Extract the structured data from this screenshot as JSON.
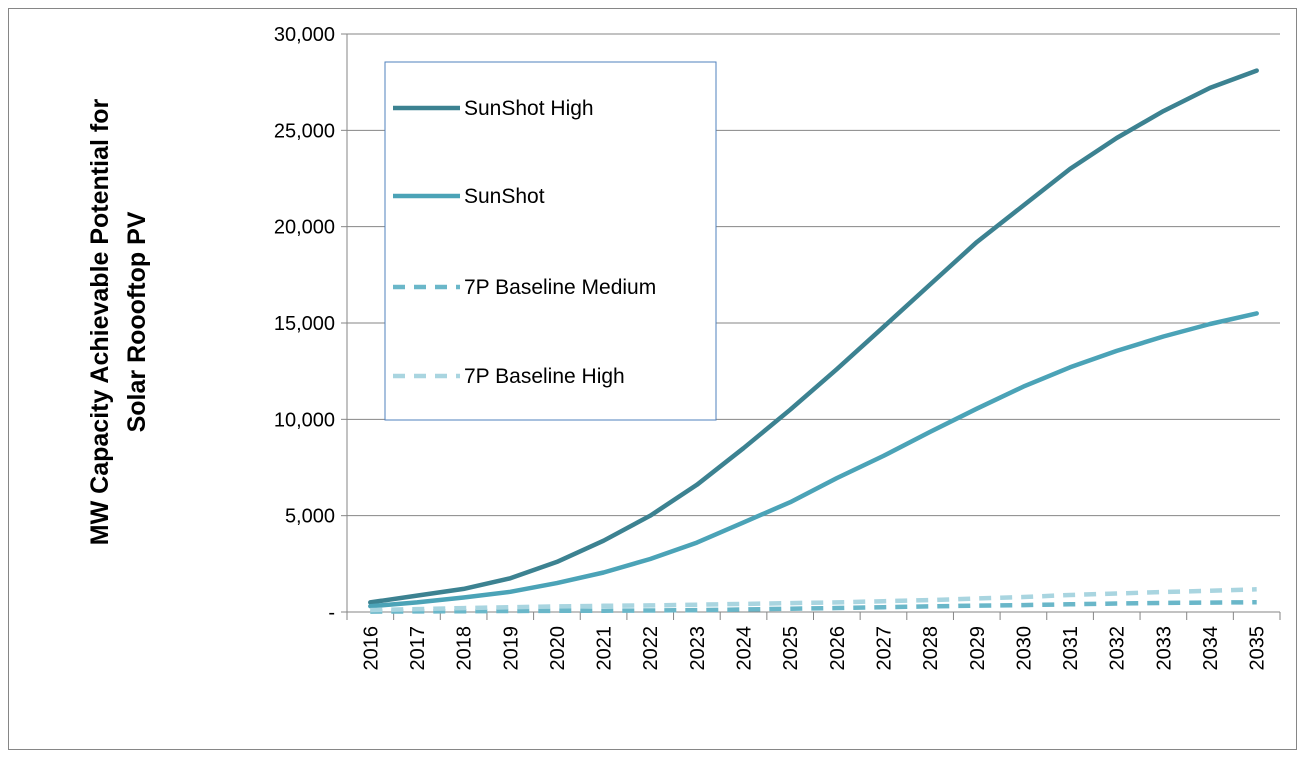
{
  "chart_data": {
    "type": "line",
    "title": "",
    "ylabel_line1": "MW Capacity Achievable Potential for",
    "ylabel_line2": "Solar Roooftop PV",
    "xlabel": "",
    "ylim": [
      0,
      30000
    ],
    "y_ticks": [
      0,
      5000,
      10000,
      15000,
      20000,
      25000,
      30000
    ],
    "y_tick_labels": [
      "-",
      "5,000",
      "10,000",
      "15,000",
      "20,000",
      "25,000",
      "30,000"
    ],
    "categories": [
      "2016",
      "2017",
      "2018",
      "2019",
      "2020",
      "2021",
      "2022",
      "2023",
      "2024",
      "2025",
      "2026",
      "2027",
      "2028",
      "2029",
      "2030",
      "2031",
      "2032",
      "2033",
      "2034",
      "2035"
    ],
    "grid": "horizontal",
    "legend_position": "top-left",
    "series": [
      {
        "name": "SunShot High",
        "color": "#3c8291",
        "dash": "solid",
        "values": [
          500,
          850,
          1200,
          1750,
          2600,
          3700,
          5000,
          6600,
          8500,
          10500,
          12600,
          14800,
          17000,
          19200,
          21100,
          23000,
          24600,
          26000,
          27200,
          28100
        ]
      },
      {
        "name": "SunShot",
        "color": "#4ba3b7",
        "dash": "solid",
        "values": [
          300,
          500,
          750,
          1050,
          1500,
          2050,
          2750,
          3600,
          4650,
          5700,
          6950,
          8100,
          9350,
          10550,
          11700,
          12700,
          13550,
          14300,
          14950,
          15500
        ]
      },
      {
        "name": "7P Baseline Medium",
        "color": "#6ab7c9",
        "dash": "dashed",
        "values": [
          20,
          30,
          40,
          50,
          60,
          70,
          80,
          100,
          130,
          170,
          210,
          250,
          290,
          330,
          360,
          400,
          440,
          470,
          490,
          510
        ]
      },
      {
        "name": "7P Baseline High",
        "color": "#a9d5e0",
        "dash": "dashed",
        "values": [
          100,
          150,
          200,
          250,
          290,
          320,
          340,
          380,
          420,
          460,
          500,
          560,
          620,
          700,
          780,
          880,
          960,
          1040,
          1100,
          1180
        ]
      }
    ]
  }
}
